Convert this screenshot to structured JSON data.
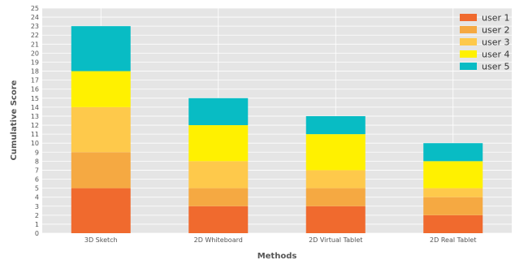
{
  "chart_data": {
    "type": "bar",
    "stacked": true,
    "title": "",
    "xlabel": "Methods",
    "ylabel": "Cumulative Score",
    "ylim": [
      0,
      25
    ],
    "yticks": [
      0,
      1,
      2,
      3,
      4,
      5,
      6,
      7,
      8,
      9,
      10,
      11,
      12,
      13,
      14,
      15,
      16,
      17,
      18,
      19,
      20,
      21,
      22,
      23,
      24,
      25
    ],
    "grid": true,
    "legend_position": "top-right",
    "categories": [
      "3D Sketch",
      "2D Whiteboard",
      "2D Virtual Tablet",
      "2D Real Tablet"
    ],
    "series": [
      {
        "name": "user 1",
        "color": "#f06a2e",
        "values": [
          5,
          3,
          3,
          2
        ]
      },
      {
        "name": "user 2",
        "color": "#f5a942",
        "values": [
          4,
          2,
          2,
          2
        ]
      },
      {
        "name": "user 3",
        "color": "#fec94b",
        "values": [
          5,
          3,
          2,
          1
        ]
      },
      {
        "name": "user 4",
        "color": "#fff100",
        "values": [
          4,
          4,
          4,
          3
        ]
      },
      {
        "name": "user 5",
        "color": "#08bcc4",
        "values": [
          5,
          3,
          2,
          2
        ]
      }
    ],
    "plot_background": "#e5e5e5"
  }
}
